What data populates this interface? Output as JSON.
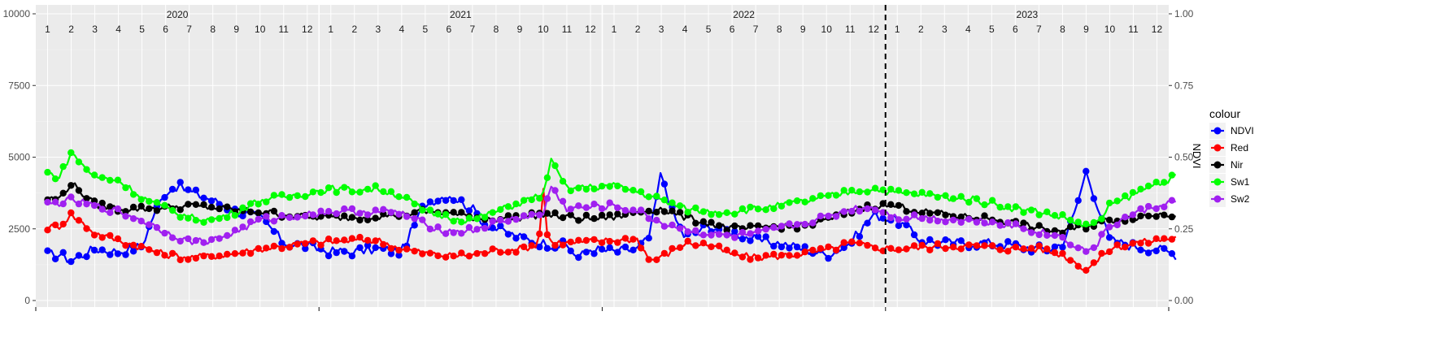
{
  "chart_data": {
    "type": "line",
    "title": "",
    "xlabel": "",
    "ylabel": "",
    "y2label": "NDVI",
    "ylim": [
      0,
      10000
    ],
    "y2lim": [
      0,
      1
    ],
    "yticks": [
      0,
      2500,
      5000,
      7500,
      10000
    ],
    "y2ticks": [
      "0.00",
      "0.25",
      "0.50",
      "0.75",
      "1.00"
    ],
    "years": [
      "2020",
      "2021",
      "2022",
      "2023"
    ],
    "months": [
      "1",
      "2",
      "3",
      "4",
      "5",
      "6",
      "7",
      "8",
      "9",
      "10",
      "11",
      "12"
    ],
    "dashed_vline_x": 36,
    "grid": true,
    "legend": {
      "title": "colour",
      "placement": "right"
    },
    "series": [
      {
        "name": "NDVI",
        "color": "#0000ff",
        "axis": "right",
        "keypoints": [
          [
            0,
            0.16
          ],
          [
            0.5,
            0.16
          ],
          [
            1,
            0.14
          ],
          [
            2,
            0.18
          ],
          [
            3,
            0.17
          ],
          [
            4,
            0.19
          ],
          [
            4.5,
            0.3
          ],
          [
            5,
            0.38
          ],
          [
            5.5,
            0.4
          ],
          [
            6,
            0.38
          ],
          [
            7,
            0.35
          ],
          [
            8,
            0.31
          ],
          [
            9,
            0.29
          ],
          [
            9.6,
            0.24
          ],
          [
            10,
            0.2
          ],
          [
            11,
            0.19
          ],
          [
            12,
            0.17
          ],
          [
            13,
            0.17
          ],
          [
            14,
            0.18
          ],
          [
            15,
            0.17
          ],
          [
            16,
            0.34
          ],
          [
            17,
            0.37
          ],
          [
            18,
            0.32
          ],
          [
            18.5,
            0.27
          ],
          [
            19,
            0.25
          ],
          [
            20,
            0.22
          ],
          [
            21,
            0.2
          ],
          [
            22,
            0.19
          ],
          [
            22.5,
            0.15
          ],
          [
            23,
            0.18
          ],
          [
            24,
            0.17
          ],
          [
            25,
            0.18
          ],
          [
            25.5,
            0.22
          ],
          [
            26,
            0.45
          ],
          [
            26.5,
            0.3
          ],
          [
            27,
            0.22
          ],
          [
            28,
            0.26
          ],
          [
            29,
            0.24
          ],
          [
            30,
            0.21
          ],
          [
            31,
            0.2
          ],
          [
            32,
            0.18
          ],
          [
            33,
            0.16
          ],
          [
            34,
            0.2
          ],
          [
            35,
            0.3
          ],
          [
            36,
            0.28
          ],
          [
            37,
            0.21
          ],
          [
            38,
            0.2
          ],
          [
            39,
            0.2
          ],
          [
            40,
            0.2
          ],
          [
            41,
            0.19
          ],
          [
            42,
            0.18
          ],
          [
            42.5,
            0.18
          ],
          [
            43,
            0.2
          ],
          [
            43.5,
            0.3
          ],
          [
            44,
            0.45
          ],
          [
            44.5,
            0.33
          ],
          [
            45,
            0.21
          ],
          [
            46,
            0.19
          ],
          [
            47,
            0.18
          ],
          [
            47.8,
            0.16
          ]
        ]
      },
      {
        "name": "Red",
        "color": "#ff0000",
        "axis": "left",
        "keypoints": [
          [
            0,
            2550
          ],
          [
            0.5,
            2600
          ],
          [
            1,
            3000
          ],
          [
            2,
            2350
          ],
          [
            3,
            2100
          ],
          [
            4,
            1850
          ],
          [
            5,
            1600
          ],
          [
            6,
            1500
          ],
          [
            7,
            1550
          ],
          [
            8,
            1650
          ],
          [
            9,
            1800
          ],
          [
            10,
            1900
          ],
          [
            11,
            2000
          ],
          [
            12,
            2050
          ],
          [
            13,
            2100
          ],
          [
            14,
            2100
          ],
          [
            15,
            1800
          ],
          [
            16,
            1650
          ],
          [
            17,
            1550
          ],
          [
            18,
            1600
          ],
          [
            19,
            1750
          ],
          [
            20,
            1800
          ],
          [
            20.8,
            1950
          ],
          [
            21,
            3950
          ],
          [
            21.2,
            2050
          ],
          [
            22,
            2000
          ],
          [
            23,
            2050
          ],
          [
            24,
            2100
          ],
          [
            25,
            2150
          ],
          [
            25.5,
            1400
          ],
          [
            26,
            1500
          ],
          [
            27,
            2000
          ],
          [
            28,
            1950
          ],
          [
            29,
            1600
          ],
          [
            30,
            1500
          ],
          [
            31,
            1550
          ],
          [
            32,
            1650
          ],
          [
            33,
            1750
          ],
          [
            34,
            2000
          ],
          [
            35,
            1850
          ],
          [
            36,
            1800
          ],
          [
            37,
            1850
          ],
          [
            38,
            1900
          ],
          [
            39,
            1900
          ],
          [
            40,
            1850
          ],
          [
            41,
            1800
          ],
          [
            42,
            1800
          ],
          [
            43,
            1600
          ],
          [
            44,
            1100
          ],
          [
            44.5,
            1400
          ],
          [
            45,
            1800
          ],
          [
            46,
            2000
          ],
          [
            47,
            2100
          ],
          [
            47.8,
            2200
          ]
        ]
      },
      {
        "name": "Nir",
        "color": "#000000",
        "axis": "left",
        "keypoints": [
          [
            0,
            3550
          ],
          [
            0.5,
            3550
          ],
          [
            1,
            4100
          ],
          [
            2,
            3350
          ],
          [
            3,
            3200
          ],
          [
            4,
            3200
          ],
          [
            5,
            3250
          ],
          [
            6,
            3300
          ],
          [
            7,
            3250
          ],
          [
            8,
            3150
          ],
          [
            9,
            3100
          ],
          [
            10,
            3000
          ],
          [
            11,
            2900
          ],
          [
            12,
            2900
          ],
          [
            13,
            2900
          ],
          [
            14,
            2950
          ],
          [
            15,
            3000
          ],
          [
            16,
            3100
          ],
          [
            17,
            3050
          ],
          [
            18,
            2900
          ],
          [
            19,
            2850
          ],
          [
            20,
            2900
          ],
          [
            21,
            3000
          ],
          [
            22,
            2900
          ],
          [
            23,
            2850
          ],
          [
            24,
            2900
          ],
          [
            25,
            3100
          ],
          [
            26,
            3200
          ],
          [
            27,
            2900
          ],
          [
            28,
            2700
          ],
          [
            29,
            2500
          ],
          [
            30,
            2500
          ],
          [
            31,
            2600
          ],
          [
            32,
            2600
          ],
          [
            33,
            2800
          ],
          [
            34,
            3100
          ],
          [
            35,
            3300
          ],
          [
            36,
            3300
          ],
          [
            37,
            3100
          ],
          [
            38,
            3000
          ],
          [
            39,
            2900
          ],
          [
            40,
            2850
          ],
          [
            41,
            2700
          ],
          [
            42,
            2500
          ],
          [
            43,
            2400
          ],
          [
            44,
            2600
          ],
          [
            45,
            2800
          ],
          [
            46,
            2900
          ],
          [
            47,
            3000
          ],
          [
            47.8,
            3000
          ]
        ]
      },
      {
        "name": "Sw1",
        "color": "#00ff00",
        "axis": "left",
        "keypoints": [
          [
            0,
            4450
          ],
          [
            0.5,
            4300
          ],
          [
            1,
            5150
          ],
          [
            2,
            4300
          ],
          [
            3,
            4200
          ],
          [
            4,
            3600
          ],
          [
            5,
            3200
          ],
          [
            6,
            2900
          ],
          [
            7,
            2800
          ],
          [
            8,
            3100
          ],
          [
            9,
            3500
          ],
          [
            10,
            3600
          ],
          [
            11,
            3750
          ],
          [
            12,
            3900
          ],
          [
            13,
            3850
          ],
          [
            14,
            3900
          ],
          [
            15,
            3650
          ],
          [
            16,
            3100
          ],
          [
            17,
            2900
          ],
          [
            18,
            2800
          ],
          [
            19,
            3100
          ],
          [
            20,
            3400
          ],
          [
            21,
            3700
          ],
          [
            21.3,
            4900
          ],
          [
            22,
            3900
          ],
          [
            23,
            3950
          ],
          [
            24,
            4000
          ],
          [
            25,
            3800
          ],
          [
            26,
            3500
          ],
          [
            27,
            3200
          ],
          [
            28,
            3100
          ],
          [
            29,
            3100
          ],
          [
            30,
            3200
          ],
          [
            31,
            3300
          ],
          [
            32,
            3450
          ],
          [
            33,
            3600
          ],
          [
            34,
            3800
          ],
          [
            35,
            3900
          ],
          [
            36,
            3750
          ],
          [
            37,
            3700
          ],
          [
            38,
            3600
          ],
          [
            39,
            3550
          ],
          [
            40,
            3400
          ],
          [
            41,
            3200
          ],
          [
            42,
            3100
          ],
          [
            43,
            2900
          ],
          [
            44,
            2600
          ],
          [
            44.5,
            2700
          ],
          [
            45,
            3300
          ],
          [
            46,
            3700
          ],
          [
            47,
            4100
          ],
          [
            47.8,
            4300
          ]
        ]
      },
      {
        "name": "Sw2",
        "color": "#a020f0",
        "axis": "left",
        "keypoints": [
          [
            0,
            3350
          ],
          [
            0.5,
            3400
          ],
          [
            1,
            3500
          ],
          [
            2,
            3300
          ],
          [
            3,
            3100
          ],
          [
            4,
            2800
          ],
          [
            5,
            2400
          ],
          [
            6,
            2050
          ],
          [
            7,
            2100
          ],
          [
            8,
            2400
          ],
          [
            9,
            2800
          ],
          [
            10,
            2900
          ],
          [
            11,
            3000
          ],
          [
            12,
            3100
          ],
          [
            13,
            3100
          ],
          [
            14,
            3100
          ],
          [
            15,
            3050
          ],
          [
            16,
            2650
          ],
          [
            17,
            2400
          ],
          [
            18,
            2450
          ],
          [
            19,
            2700
          ],
          [
            20,
            2900
          ],
          [
            21,
            3000
          ],
          [
            21.3,
            4000
          ],
          [
            22,
            3200
          ],
          [
            23,
            3250
          ],
          [
            24,
            3300
          ],
          [
            25,
            3100
          ],
          [
            26,
            2700
          ],
          [
            27,
            2500
          ],
          [
            28,
            2300
          ],
          [
            29,
            2250
          ],
          [
            30,
            2300
          ],
          [
            31,
            2500
          ],
          [
            32,
            2700
          ],
          [
            33,
            2900
          ],
          [
            34,
            3200
          ],
          [
            35,
            3250
          ],
          [
            36,
            2900
          ],
          [
            37,
            2900
          ],
          [
            38,
            2850
          ],
          [
            39,
            2800
          ],
          [
            40,
            2750
          ],
          [
            41,
            2600
          ],
          [
            42,
            2400
          ],
          [
            43,
            2200
          ],
          [
            44,
            1700
          ],
          [
            44.5,
            2000
          ],
          [
            45,
            2600
          ],
          [
            46,
            3000
          ],
          [
            47,
            3300
          ],
          [
            47.8,
            3450
          ]
        ]
      }
    ]
  }
}
